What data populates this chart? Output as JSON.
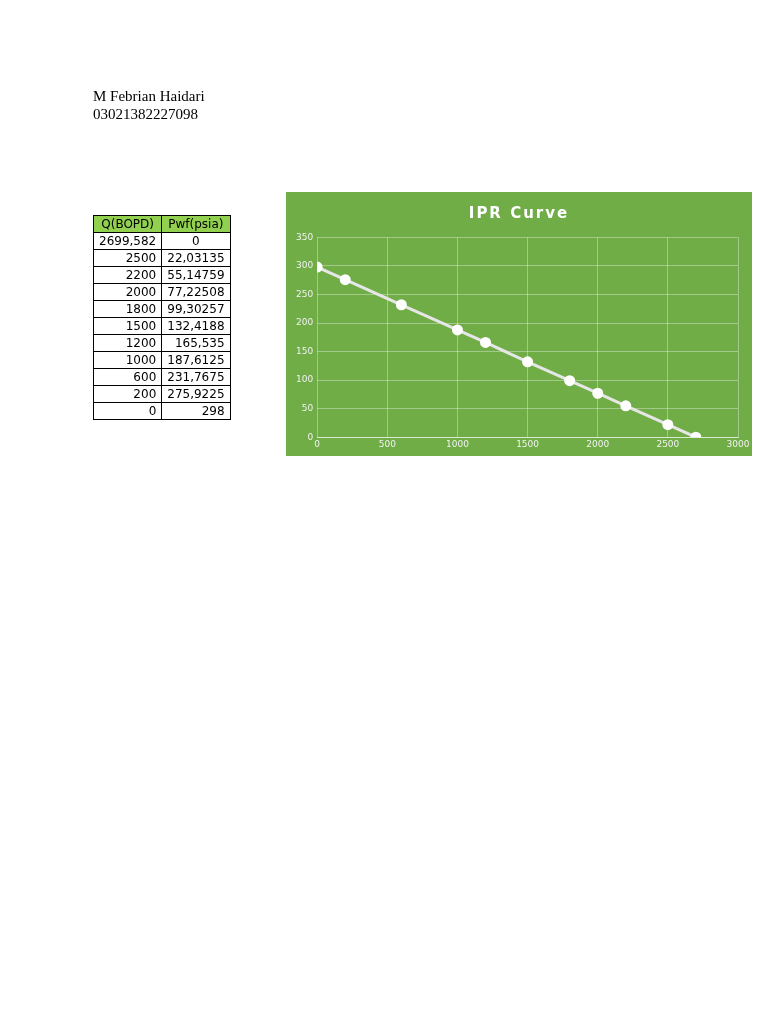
{
  "chart_data": [
    {
      "type": "other",
      "annotations": [
        "M Febrian Haidari",
        "03021382227098"
      ]
    },
    {
      "type": "other",
      "annotations": [
        "Q(BOPD)",
        "Pwf(psia)",
        "2699,582",
        "0",
        "2500",
        "22,03135",
        "2200",
        "55,14759",
        "2000",
        "77,22508",
        "1800",
        "99,30257",
        "1500",
        "132,4188",
        "1200",
        "165,535",
        "1000",
        "187,6125",
        "600",
        "231,7675",
        "200",
        "275,9225",
        "0",
        "298"
      ]
    },
    {
      "type": "line",
      "title": "IPR Curve",
      "x": [
        2699.582,
        2500,
        2200,
        2000,
        1800,
        1500,
        1200,
        1000,
        600,
        200,
        0
      ],
      "series": [
        {
          "color": "#e6e6e6",
          "values": [
            0,
            22,
            55,
            77,
            99,
            132,
            166,
            188,
            232,
            276,
            298
          ]
        }
      ],
      "xlim": [
        0,
        3000
      ],
      "xticks": [
        0,
        500,
        1000,
        1500,
        2000,
        2500,
        3000
      ],
      "ylim": [
        0,
        350
      ],
      "yticks": [
        0,
        50,
        100,
        150,
        200,
        250,
        300,
        350
      ],
      "grid": true,
      "marker": "circle",
      "line_style": "solid"
    }
  ]
}
